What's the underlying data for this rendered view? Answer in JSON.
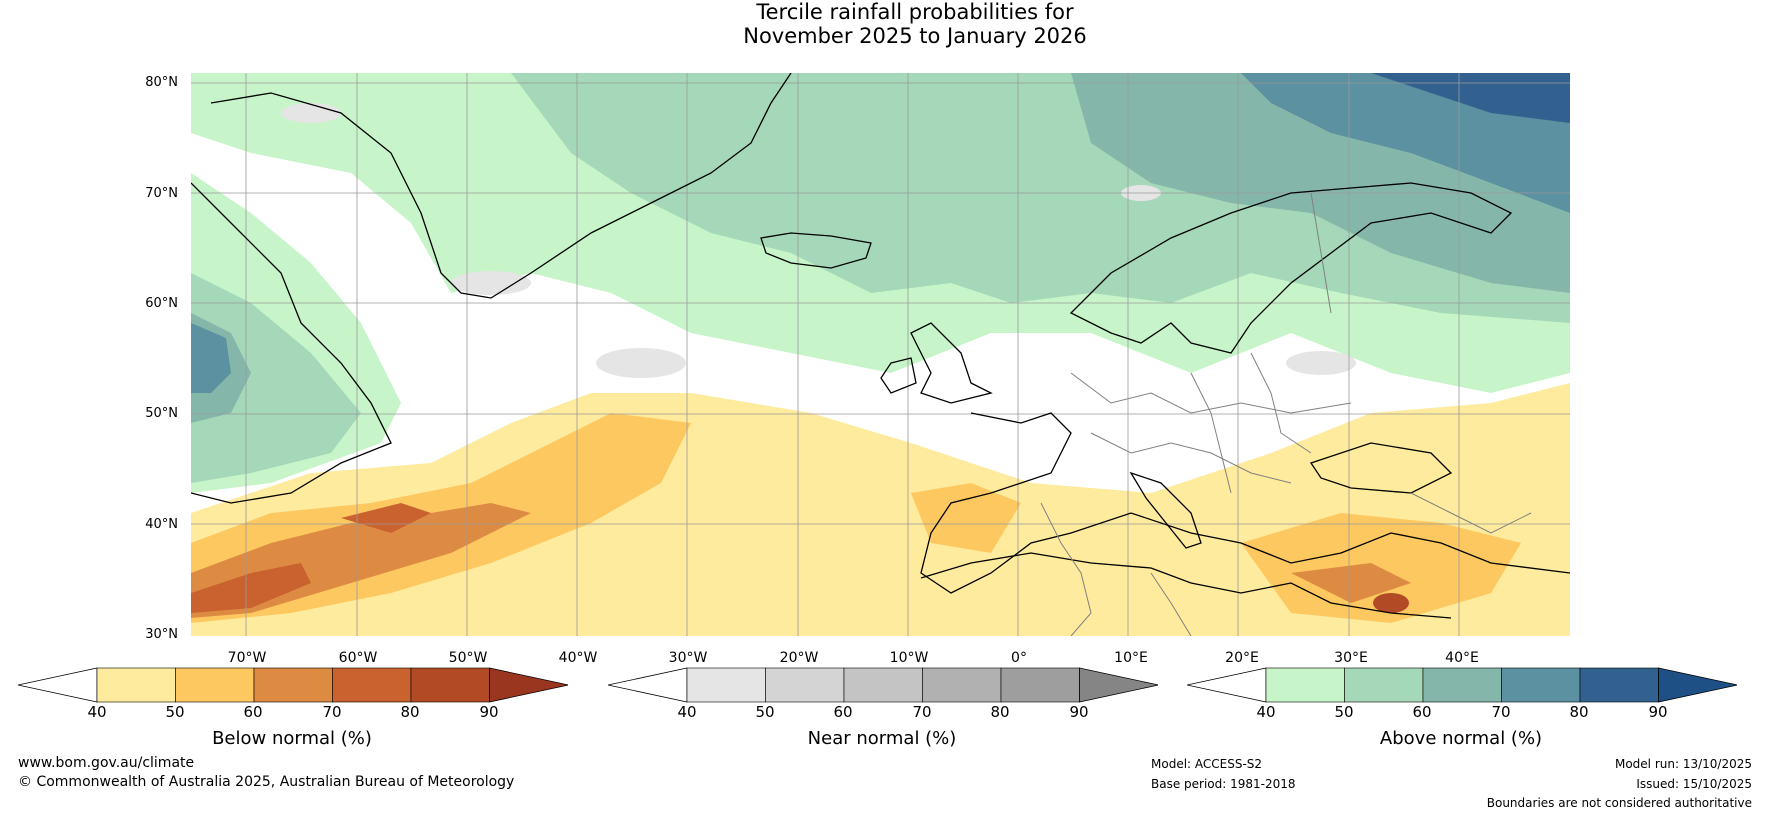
{
  "title": {
    "line1": "Tercile rainfall probabilities for",
    "line2": "November 2025 to January 2026"
  },
  "latitude_labels": [
    "80°N",
    "70°N",
    "60°N",
    "50°N",
    "40°N",
    "30°N"
  ],
  "longitude_labels": [
    "70°W",
    "60°W",
    "50°W",
    "40°W",
    "30°W",
    "20°W",
    "10°W",
    "0°",
    "10°E",
    "20°E",
    "30°E",
    "40°E"
  ],
  "colorbars": [
    {
      "label": "Below normal (%)",
      "ticks": [
        "40",
        "50",
        "60",
        "70",
        "80",
        "90"
      ],
      "colors": [
        "#ffffff",
        "#feeb9d",
        "#fec861",
        "#dd8b42",
        "#c9622e",
        "#b24a26",
        "#9a3520"
      ]
    },
    {
      "label": "Near normal (%)",
      "ticks": [
        "40",
        "50",
        "60",
        "70",
        "80",
        "90"
      ],
      "colors": [
        "#ffffff",
        "#e5e5e5",
        "#d4d4d4",
        "#c4c4c4",
        "#b1b1b1",
        "#9e9e9e",
        "#858585"
      ]
    },
    {
      "label": "Above normal (%)",
      "ticks": [
        "40",
        "50",
        "60",
        "70",
        "80",
        "90"
      ],
      "colors": [
        "#ffffff",
        "#c7f5c9",
        "#a5d8b8",
        "#84b7aa",
        "#5b91a0",
        "#33618f",
        "#1e4f85"
      ]
    }
  ],
  "footer": {
    "website": "www.bom.gov.au/climate",
    "copyright": "© Commonwealth of Australia 2025, Australian Bureau of Meteorology",
    "model": "Model: ACCESS-S2",
    "base_period": "Base period: 1981-2018",
    "model_run": "Model run: 13/10/2025",
    "issued": "Issued: 15/10/2025",
    "disclaimer": "Boundaries are not considered authoritative"
  }
}
